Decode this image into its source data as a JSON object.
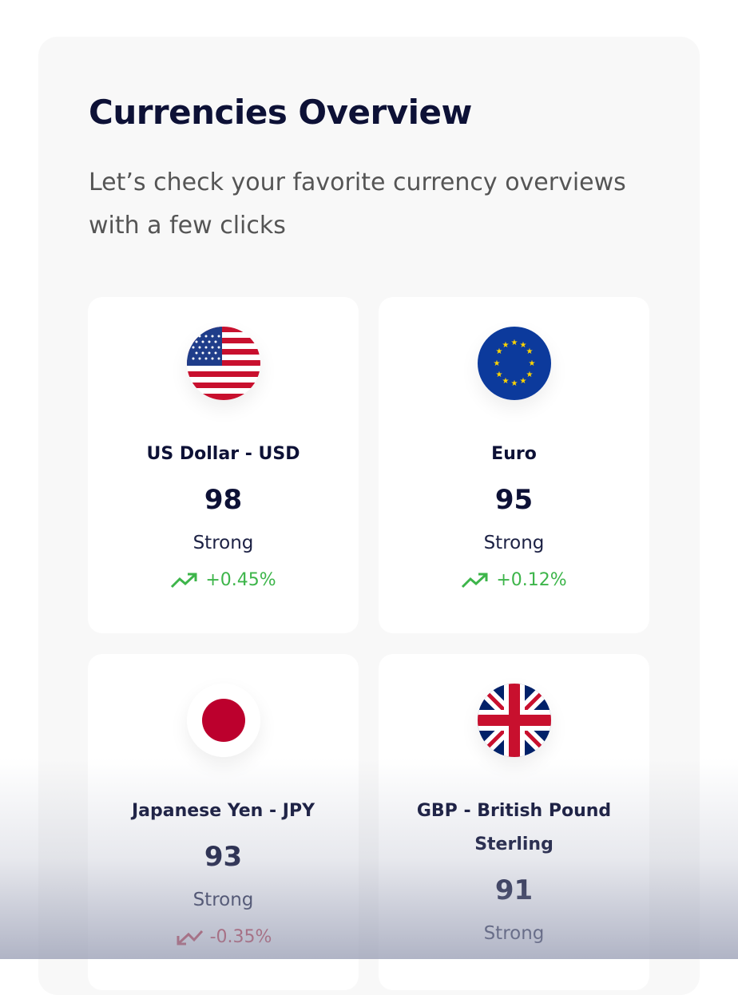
{
  "header": {
    "title": "Currencies Overview",
    "subtitle": "Let’s check your favorite currency overviews with a few clicks"
  },
  "colors": {
    "positive": "#3db54a",
    "negative": "#c0283a",
    "text": "#0d1136"
  },
  "currencies": [
    {
      "name": "US Dollar - USD",
      "flag": "us-flag",
      "score": "98",
      "strength": "Strong",
      "change": "+0.45%",
      "trend": "up"
    },
    {
      "name": "Euro",
      "flag": "eu-flag",
      "score": "95",
      "strength": "Strong",
      "change": "+0.12%",
      "trend": "up"
    },
    {
      "name": "Japanese Yen - JPY",
      "flag": "japan-flag",
      "score": "93",
      "strength": "Strong",
      "change": "-0.35%",
      "trend": "down"
    },
    {
      "name": "GBP - British Pound Sterling",
      "flag": "uk-flag",
      "score": "91",
      "strength": "Strong",
      "change": "",
      "trend": ""
    }
  ]
}
